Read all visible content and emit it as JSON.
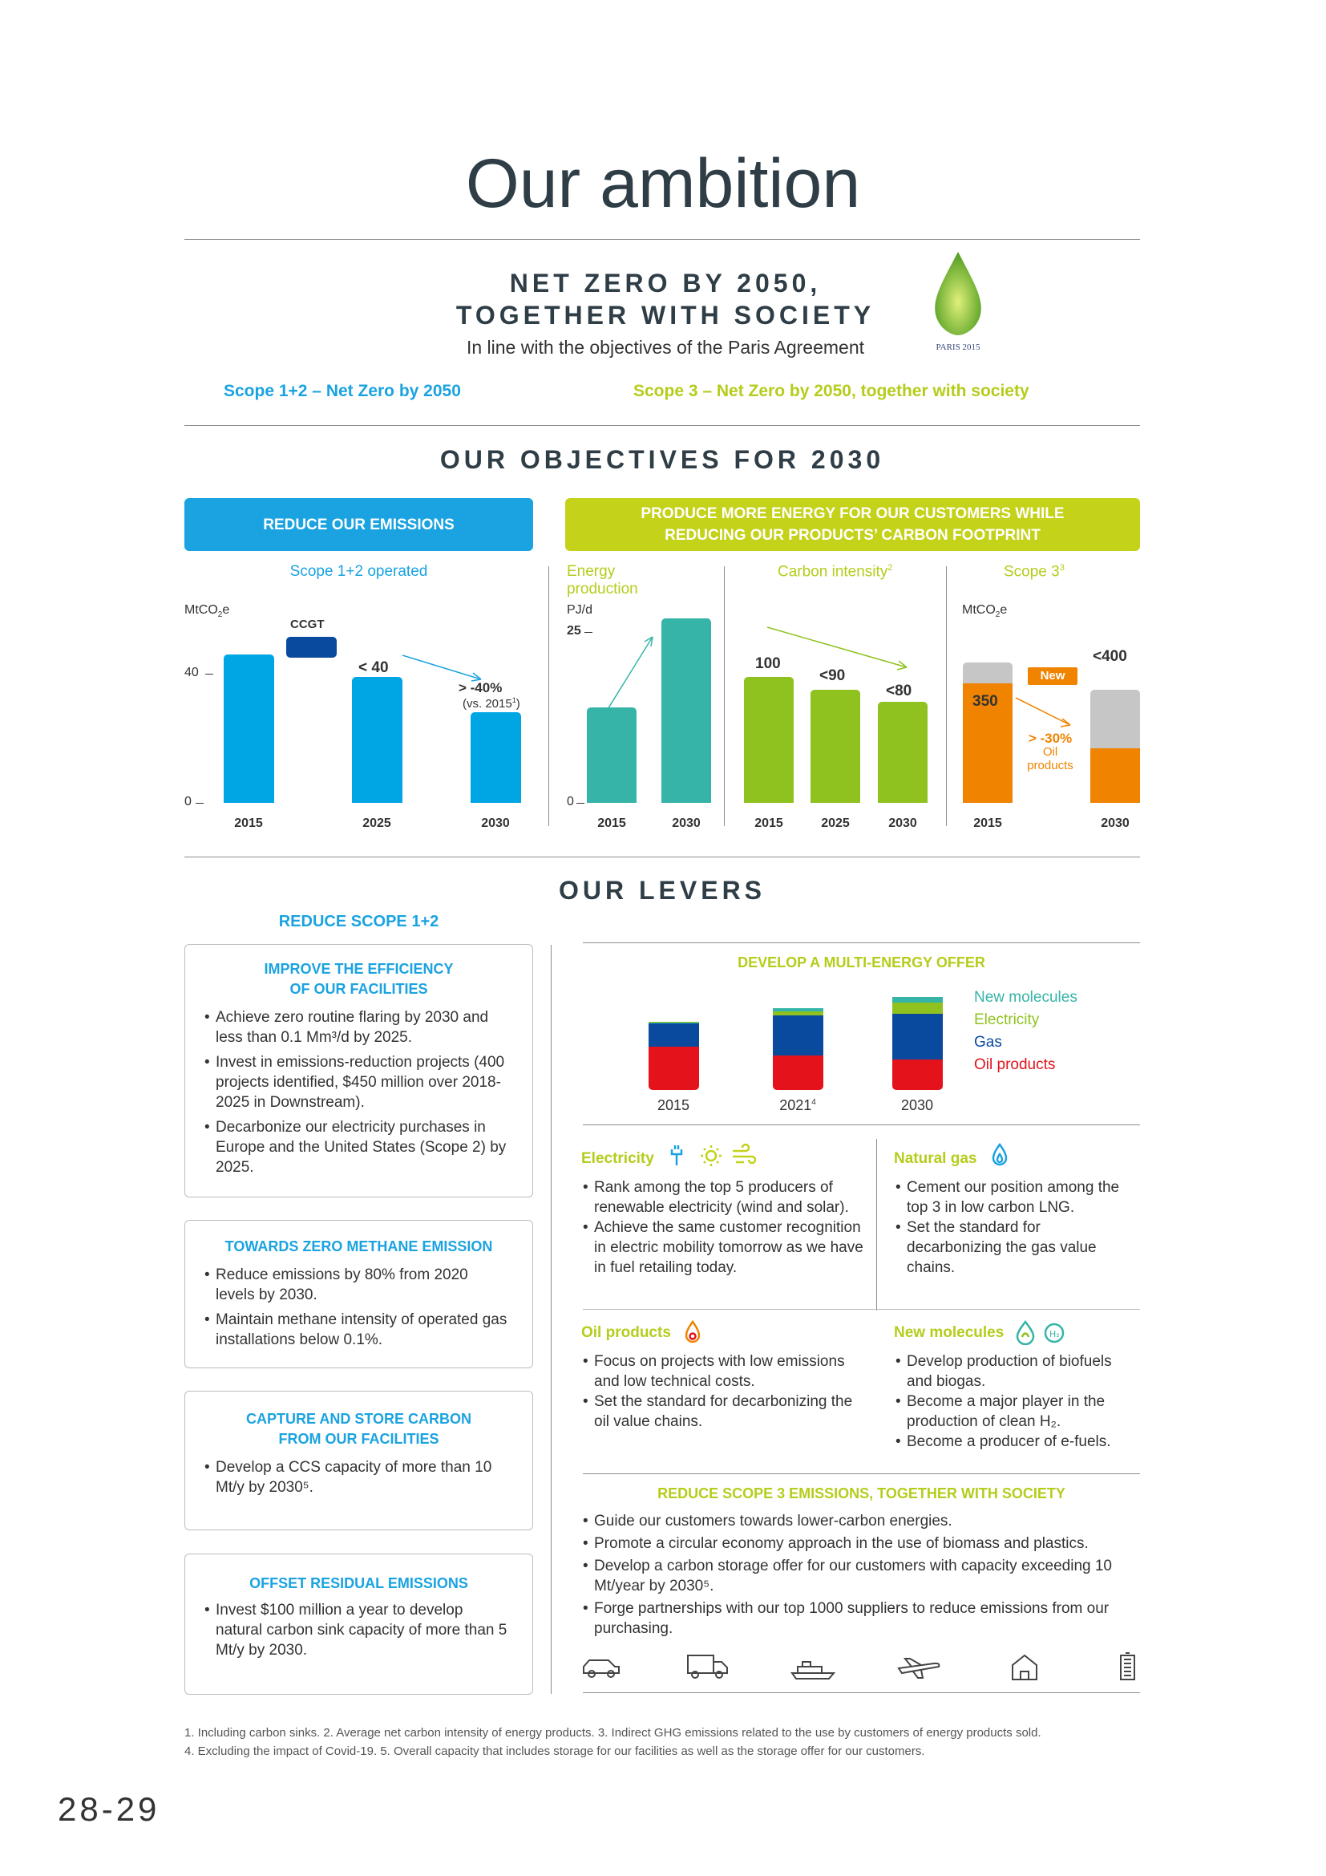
{
  "title": "Our ambition",
  "net_zero": {
    "line1": "NET ZERO BY 2050,",
    "line2": "TOGETHER WITH SOCIETY",
    "subtitle": "In line with the objectives of the Paris Agreement",
    "scope12": "Scope 1+2 – Net Zero by 2050",
    "scope3": "Scope 3 – Net Zero by 2050, together with society",
    "logo_text": "PARIS 2015"
  },
  "objectives": {
    "heading": "OUR OBJECTIVES FOR 2030",
    "box_emissions": "REDUCE OUR EMISSIONS",
    "box_energy_1": "PRODUCE MORE ENERGY FOR OUR CUSTOMERS WHILE",
    "box_energy_2": "REDUCING OUR PRODUCTS’ CARBON FOOTPRINT",
    "scope12_title": "Scope 1+2 operated",
    "energy_title_1": "Energy",
    "energy_title_2": "production",
    "carbon_title": "Carbon intensity",
    "carbon_sup": "2",
    "scope3_title": "Scope 3",
    "scope3_sup": "3",
    "unit_mtco2": "MtCO",
    "unit_mtco2_sub": "2",
    "unit_mtco2_e": "e",
    "unit_pjd": "PJ/d"
  },
  "chart_data": [
    {
      "type": "bar",
      "title": "Scope 1+2 operated",
      "ylabel": "MtCO2e",
      "yticks": [
        0,
        40
      ],
      "categories": [
        "2015",
        "2025",
        "2030"
      ],
      "values": [
        46,
        39,
        28
      ],
      "labels": [
        "",
        "< 40",
        "> -40%"
      ],
      "annotation_ccgt": "CCGT",
      "ccgt_value": 5,
      "note": "(vs. 2015",
      "note_sup": "1",
      "note_end": ")"
    },
    {
      "type": "bar",
      "title": "Energy production",
      "ylabel": "PJ/d",
      "yticks": [
        0,
        25
      ],
      "categories": [
        "2015",
        "2030"
      ],
      "values": [
        14,
        27
      ]
    },
    {
      "type": "bar",
      "title": "Carbon intensity",
      "categories": [
        "2015",
        "2025",
        "2030"
      ],
      "values": [
        100,
        90,
        80
      ],
      "labels": [
        "100",
        "<90",
        "<80"
      ]
    },
    {
      "type": "bar",
      "title": "Scope 3",
      "ylabel": "MtCO2e",
      "categories": [
        "2015",
        "2030"
      ],
      "series": [
        {
          "name": "Oil products",
          "values": [
            350,
            160
          ]
        },
        {
          "name": "",
          "values": [
            60,
            170
          ]
        }
      ],
      "labels": [
        "350",
        "<400"
      ],
      "badge": "New",
      "reduction": "> -30%",
      "reduction_1": "Oil",
      "reduction_2": "products"
    }
  ],
  "levers": {
    "heading": "OUR LEVERS",
    "reduce_scope": "REDUCE SCOPE 1+2",
    "efficiency": {
      "title1": "IMPROVE THE EFFICIENCY",
      "title2": "OF OUR FACILITIES",
      "b1": "Achieve zero routine flaring by 2030 and less than 0.1 Mm³/d by 2025.",
      "b2": "Invest in emissions-reduction projects (400 projects identified, $450 million over 2018-2025 in Downstream).",
      "b3": "Decarbonize our electricity purchases in Europe and the United States (Scope 2) by 2025."
    },
    "methane": {
      "title": "TOWARDS ZERO METHANE EMISSION",
      "b1": "Reduce emissions by 80% from 2020 levels by 2030.",
      "b2": "Maintain methane intensity of operated gas installations below 0.1%."
    },
    "ccs": {
      "title1": "CAPTURE AND STORE CARBON",
      "title2": "FROM OUR FACILITIES",
      "b1": "Develop a CCS capacity of more than 10 Mt/y by 2030⁵."
    },
    "offset": {
      "title": "OFFSET RESIDUAL EMISSIONS",
      "b1": "Invest $100 million a year to develop natural carbon sink capacity of more than 5 Mt/y by 2030."
    },
    "multi": {
      "title": "DEVELOP A MULTI-ENERGY OFFER",
      "legend": [
        "New molecules",
        "Electricity",
        "Gas",
        "Oil products"
      ],
      "years": [
        "2015",
        "2021",
        "2030"
      ],
      "year_sup": "4"
    },
    "electricity": {
      "title": "Electricity",
      "b1": "Rank among the top 5 producers of renewable electricity (wind and solar).",
      "b2": "Achieve the same customer recognition in electric mobility tomorrow as we have in fuel retailing today."
    },
    "natural_gas": {
      "title": "Natural gas",
      "b1": "Cement our position among the top 3 in low carbon LNG.",
      "b2": "Set the standard for decarbonizing the gas value chains."
    },
    "oil": {
      "title": "Oil products",
      "b1": "Focus on projects with low emissions and low technical costs.",
      "b2": "Set the standard for decarbonizing the oil value chains."
    },
    "new_molecules": {
      "title": "New molecules",
      "b1": "Develop production of biofuels and biogas.",
      "b2": "Become a major player in the production of clean H₂.",
      "b3": "Become a producer of e-fuels."
    },
    "scope3": {
      "title": "REDUCE SCOPE 3 EMISSIONS, TOGETHER WITH SOCIETY",
      "b1": "Guide our customers towards lower-carbon energies.",
      "b2": "Promote a circular economy approach in the use of biomass and plastics.",
      "b3": "Develop a carbon storage offer for our customers with capacity exceeding 10 Mt/year by 2030⁵.",
      "b4": "Forge partnerships with our top 1000 suppliers to reduce emissions from our purchasing."
    }
  },
  "footnotes": {
    "line1": "1. Including carbon sinks. 2. Average net carbon intensity of energy products. 3. Indirect GHG emissions related to the use by customers of energy products sold.",
    "line2": "4. Excluding the impact of Covid-19. 5. Overall capacity that includes storage for our facilities as well as the storage offer for our customers."
  },
  "page_number": "28-29",
  "colors": {
    "blue": "#1aa3e0",
    "lime": "#b6cc1b",
    "teal": "#37b4a8",
    "green": "#8fc21f",
    "orange": "#f08300",
    "grey": "#c6c6c6",
    "navy": "#0a4a9e",
    "red": "#e3121b"
  }
}
